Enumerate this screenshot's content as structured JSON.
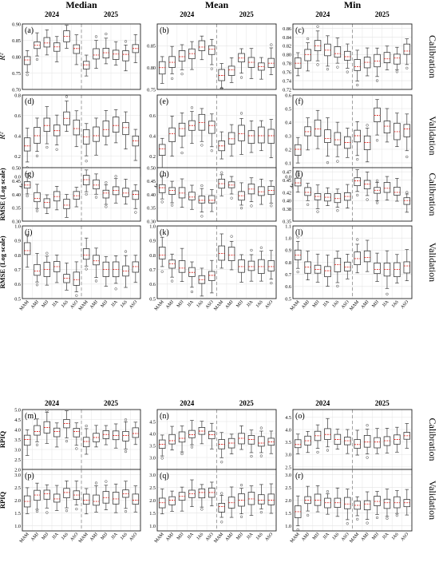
{
  "columns": [
    "Median",
    "Mean",
    "Min"
  ],
  "years": [
    "2024",
    "2025"
  ],
  "rows": [
    "Calibration",
    "Validation"
  ],
  "seasons": [
    "MAM",
    "AMJ",
    "MJJ",
    "JJA",
    "JAS",
    "ASO"
  ],
  "colors": {
    "box": "#3a3a3a",
    "median": "#e0302a",
    "divider": "#9a9a9a",
    "grid": "#e4e4e4",
    "frame": "#222222"
  },
  "chart_data": [
    {
      "type": "box",
      "metric": "R²",
      "ylabel": "R²",
      "panels": [
        {
          "label": "(a)",
          "column": "Median",
          "row": "Calibration",
          "ylim": [
            0.7,
            0.9
          ],
          "ticks": [
            "0.70",
            "0.75",
            "0.80",
            "0.85",
            "0.90"
          ],
          "medians": [
            0.79,
            0.835,
            0.842,
            0.83,
            0.862,
            0.825,
            0.775,
            0.805,
            0.812,
            0.808,
            0.807,
            0.825
          ]
        },
        {
          "label": "(b)",
          "column": "Mean",
          "row": "Calibration",
          "ylim": [
            0.75,
            0.9
          ],
          "ticks": [
            "0.75",
            "0.80",
            "0.85"
          ],
          "medians": [
            0.8,
            0.812,
            0.825,
            0.832,
            0.847,
            0.842,
            0.782,
            0.795,
            0.822,
            0.812,
            0.802,
            0.81
          ]
        },
        {
          "label": "(c)",
          "column": "Min",
          "row": "Calibration",
          "ylim": [
            0.72,
            0.87
          ],
          "ticks": [
            "0.72",
            "0.74",
            "0.76",
            "0.78",
            "0.80",
            "0.82",
            "0.84",
            "0.86"
          ],
          "medians": [
            0.78,
            0.8,
            0.82,
            0.81,
            0.802,
            0.795,
            0.772,
            0.782,
            0.785,
            0.79,
            0.792,
            0.808
          ]
        },
        {
          "label": "(d)",
          "column": "Median",
          "row": "Validation",
          "ylim": [
            0.0,
            0.8
          ],
          "ticks": [
            "0.0",
            "0.2",
            "0.4",
            "0.6",
            "0.8"
          ],
          "medians": [
            0.3,
            0.4,
            0.5,
            0.45,
            0.57,
            0.47,
            0.39,
            0.4,
            0.46,
            0.5,
            0.48,
            0.35
          ]
        },
        {
          "label": "(e)",
          "column": "Mean",
          "row": "Validation",
          "ylim": [
            0.0,
            0.8
          ],
          "ticks": [
            "0.2",
            "0.4",
            "0.6"
          ],
          "medians": [
            0.27,
            0.42,
            0.47,
            0.5,
            0.53,
            0.5,
            0.3,
            0.37,
            0.42,
            0.4,
            0.4,
            0.4
          ]
        },
        {
          "label": "(f)",
          "column": "Min",
          "row": "Validation",
          "ylim": [
            0.0,
            0.6
          ],
          "ticks": [
            "0.0",
            "0.1",
            "0.2",
            "0.3",
            "0.4",
            "0.5",
            "0.6"
          ],
          "medians": [
            0.2,
            0.33,
            0.35,
            0.28,
            0.27,
            0.25,
            0.3,
            0.25,
            0.45,
            0.37,
            0.33,
            0.35
          ]
        }
      ]
    },
    {
      "type": "box",
      "metric": "RMSE",
      "ylabel": "RMSE (Log scale)",
      "panels": [
        {
          "label": "(g)",
          "column": "Median",
          "row": "Calibration",
          "ylim": [
            0.3,
            0.5
          ],
          "ticks": [
            "0.30",
            "0.35",
            "0.40",
            "0.45",
            "0.50"
          ],
          "medians": [
            0.435,
            0.385,
            0.37,
            0.392,
            0.36,
            0.395,
            0.455,
            0.435,
            0.405,
            0.415,
            0.405,
            0.4
          ]
        },
        {
          "label": "(h)",
          "column": "Mean",
          "row": "Calibration",
          "ylim": [
            0.3,
            0.5
          ],
          "ticks": [
            "0.30",
            "0.35",
            "0.40",
            "0.45",
            "0.50"
          ],
          "medians": [
            0.425,
            0.415,
            0.405,
            0.39,
            0.378,
            0.378,
            0.44,
            0.435,
            0.395,
            0.42,
            0.41,
            0.415
          ]
        },
        {
          "label": "(i)",
          "column": "Min",
          "row": "Calibration",
          "ylim": [
            0.35,
            0.48
          ],
          "ticks": [
            "0.35",
            "0.38",
            "0.40",
            "0.42",
            "0.45",
            "0.47"
          ],
          "medians": [
            0.443,
            0.42,
            0.41,
            0.408,
            0.405,
            0.41,
            0.448,
            0.44,
            0.425,
            0.43,
            0.42,
            0.4
          ]
        },
        {
          "label": "(j)",
          "column": "Median",
          "row": "Validation",
          "ylim": [
            0.5,
            1.0
          ],
          "ticks": [
            "0.5",
            "0.6",
            "0.7",
            "0.8",
            "0.9",
            "1.0"
          ],
          "medians": [
            0.83,
            0.69,
            0.7,
            0.72,
            0.64,
            0.63,
            0.8,
            0.76,
            0.7,
            0.7,
            0.69,
            0.72
          ]
        },
        {
          "label": "(k)",
          "column": "Mean",
          "row": "Validation",
          "ylim": [
            0.5,
            1.0
          ],
          "ticks": [
            "0.5",
            "0.6",
            "0.7",
            "0.8",
            "0.9",
            "1.0"
          ],
          "medians": [
            0.8,
            0.74,
            0.71,
            0.68,
            0.63,
            0.66,
            0.81,
            0.8,
            0.72,
            0.72,
            0.72,
            0.72
          ]
        },
        {
          "label": "(l)",
          "column": "Min",
          "row": "Validation",
          "ylim": [
            0.5,
            1.1
          ],
          "ticks": [
            "0.5",
            "0.6",
            "0.7",
            "0.8",
            "0.9",
            "1.0",
            "1.1"
          ],
          "medians": [
            0.86,
            0.76,
            0.74,
            0.73,
            0.78,
            0.76,
            0.83,
            0.84,
            0.74,
            0.74,
            0.74,
            0.77
          ]
        }
      ]
    },
    {
      "type": "box",
      "metric": "RPIQ",
      "ylabel": "RPIQ",
      "panels": [
        {
          "label": "(m)",
          "column": "Median",
          "row": "Calibration",
          "ylim": [
            2.0,
            5.0
          ],
          "ticks": [
            "2.0",
            "2.5",
            "3.0",
            "3.5",
            "4.0",
            "4.5",
            "5.0"
          ],
          "medians": [
            3.5,
            3.9,
            4.1,
            3.9,
            4.3,
            3.9,
            3.4,
            3.6,
            3.75,
            3.7,
            3.7,
            3.8
          ]
        },
        {
          "label": "(n)",
          "column": "Mean",
          "row": "Calibration",
          "ylim": [
            2.5,
            5.0
          ],
          "ticks": [
            "3.0",
            "3.5",
            "4.0",
            "4.5"
          ],
          "medians": [
            3.55,
            3.7,
            3.8,
            3.95,
            4.1,
            3.95,
            3.55,
            3.6,
            3.8,
            3.75,
            3.6,
            3.65
          ]
        },
        {
          "label": "(o)",
          "column": "Min",
          "row": "Calibration",
          "ylim": [
            2.4,
            4.8
          ],
          "ticks": [
            "2.5",
            "3.0",
            "3.5",
            "4.0",
            "4.5"
          ],
          "medians": [
            3.4,
            3.55,
            3.75,
            3.8,
            3.6,
            3.55,
            3.4,
            3.5,
            3.5,
            3.55,
            3.6,
            3.75
          ]
        },
        {
          "label": "(p)",
          "column": "Median",
          "row": "Validation",
          "ylim": [
            0.8,
            3.2
          ],
          "ticks": [
            "1.0",
            "1.5",
            "2.0",
            "2.5",
            "3.0"
          ],
          "medians": [
            1.95,
            2.2,
            2.25,
            2.05,
            2.3,
            2.2,
            2.0,
            1.95,
            2.1,
            2.05,
            2.25,
            2.0
          ]
        },
        {
          "label": "(q)",
          "column": "Mean",
          "row": "Validation",
          "ylim": [
            0.8,
            3.2
          ],
          "ticks": [
            "1.0",
            "1.5",
            "2.0",
            "2.5",
            "3.0"
          ],
          "medians": [
            1.9,
            2.0,
            2.15,
            2.25,
            2.3,
            2.3,
            1.75,
            1.9,
            2.0,
            2.05,
            2.0,
            2.0
          ]
        },
        {
          "label": "(r)",
          "column": "Min",
          "row": "Validation",
          "ylim": [
            0.8,
            3.2
          ],
          "ticks": [
            "1.0",
            "1.5",
            "2.0",
            "2.5",
            "3.0"
          ],
          "medians": [
            1.55,
            2.0,
            2.0,
            1.9,
            1.9,
            1.85,
            1.8,
            1.85,
            1.95,
            1.9,
            1.9,
            1.9
          ]
        }
      ]
    }
  ]
}
